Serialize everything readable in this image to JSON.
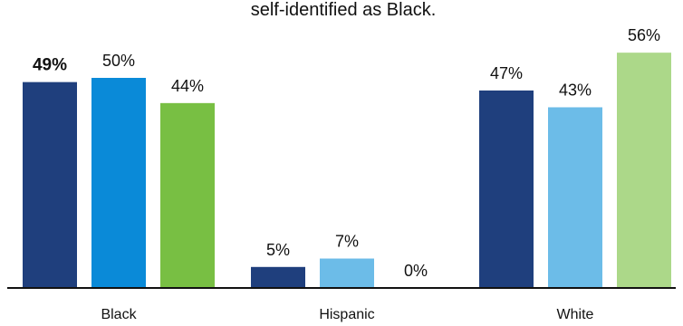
{
  "chart_data": {
    "type": "bar",
    "title": "self-identified as Black.",
    "categories": [
      "Black",
      "Hispanic",
      "White"
    ],
    "ylim": [
      0,
      60
    ],
    "grid": false,
    "legend": "none",
    "bars": [
      {
        "category": "Black",
        "value": 49,
        "label": "49%",
        "color": "#1f3f7d",
        "bold": true
      },
      {
        "category": "Black",
        "value": 50,
        "label": "50%",
        "color": "#0a8ad8",
        "bold": false
      },
      {
        "category": "Black",
        "value": 44,
        "label": "44%",
        "color": "#78bf43",
        "bold": false
      },
      {
        "category": "Hispanic",
        "value": 5,
        "label": "5%",
        "color": "#1f3f7d",
        "bold": false
      },
      {
        "category": "Hispanic",
        "value": 7,
        "label": "7%",
        "color": "#6cbce8",
        "bold": false
      },
      {
        "category": "Hispanic",
        "value": 0,
        "label": "0%",
        "color": "#acd889",
        "bold": false
      },
      {
        "category": "White",
        "value": 47,
        "label": "47%",
        "color": "#1f3f7d",
        "bold": false
      },
      {
        "category": "White",
        "value": 43,
        "label": "43%",
        "color": "#6cbce8",
        "bold": false
      },
      {
        "category": "White",
        "value": 56,
        "label": "56%",
        "color": "#acd889",
        "bold": false
      }
    ]
  }
}
